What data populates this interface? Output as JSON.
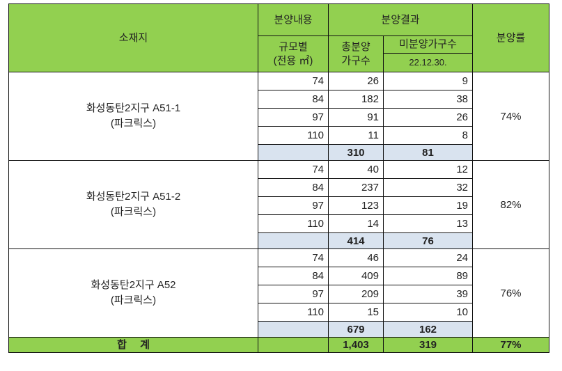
{
  "header": {
    "location": "소재지",
    "sale_content": "분양내용",
    "sale_result": "분양결과",
    "sale_rate": "분양률",
    "size_line1": "규모별",
    "size_line2": "(전용 ㎡)",
    "total_line1": "총분양",
    "total_line2": "가구수",
    "unsold": "미분양가구수",
    "unsold_date": "22.12.30."
  },
  "groups": [
    {
      "name": "화성동탄2지구 A51-1",
      "brand": "(파크릭스)",
      "rows": [
        {
          "size": "74",
          "total": "26",
          "unsold": "9"
        },
        {
          "size": "84",
          "total": "182",
          "unsold": "38"
        },
        {
          "size": "97",
          "total": "91",
          "unsold": "26"
        },
        {
          "size": "110",
          "total": "11",
          "unsold": "8"
        }
      ],
      "subtotal_total": "310",
      "subtotal_unsold": "81",
      "rate": "74%"
    },
    {
      "name": "화성동탄2지구 A51-2",
      "brand": "(파크릭스)",
      "rows": [
        {
          "size": "74",
          "total": "40",
          "unsold": "12"
        },
        {
          "size": "84",
          "total": "237",
          "unsold": "32"
        },
        {
          "size": "97",
          "total": "123",
          "unsold": "19"
        },
        {
          "size": "110",
          "total": "14",
          "unsold": "13"
        }
      ],
      "subtotal_total": "414",
      "subtotal_unsold": "76",
      "rate": "82%"
    },
    {
      "name": "화성동탄2지구 A52",
      "brand": "(파크릭스)",
      "rows": [
        {
          "size": "74",
          "total": "46",
          "unsold": "24"
        },
        {
          "size": "84",
          "total": "409",
          "unsold": "89"
        },
        {
          "size": "97",
          "total": "209",
          "unsold": "39"
        },
        {
          "size": "110",
          "total": "15",
          "unsold": "10"
        }
      ],
      "subtotal_total": "679",
      "subtotal_unsold": "162",
      "rate": "76%"
    }
  ],
  "footer": {
    "label": "합　 계",
    "total": "1,403",
    "unsold": "319",
    "rate": "77%"
  },
  "colors": {
    "header_green": "#92d050",
    "subtotal_blue": "#d9e3ef"
  }
}
